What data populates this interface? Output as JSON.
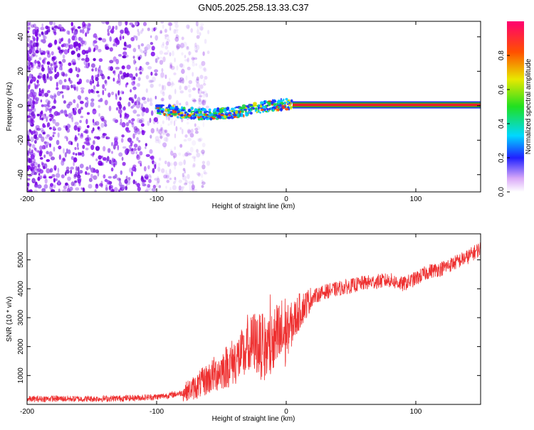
{
  "figure_title": "GN05.2025.258.13.33.C37",
  "colors": {
    "spectrogram_purple": "#7a00e6",
    "ridge_red": "#e8202a",
    "snr_line": "#ee3030",
    "ridge_green": "#20c020"
  },
  "chart_data": [
    {
      "type": "heatmap",
      "title": "GN05.2025.258.13.33.C37",
      "xlabel": "Height of straight line (km)",
      "ylabel": "Frequency (Hz)",
      "xlim": [
        -200,
        150
      ],
      "ylim": [
        -50,
        49
      ],
      "xticks": [
        -200,
        -100,
        0,
        100
      ],
      "yticks": [
        -40,
        -20,
        0,
        20,
        40
      ],
      "description_series": [
        {
          "name": "dominant frequency ridge",
          "x": [
            -100,
            -80,
            -60,
            -40,
            -20,
            0,
            20,
            150
          ],
          "y": [
            -2,
            -4,
            -5,
            -4,
            -1,
            1,
            0.5,
            0.5
          ]
        }
      ],
      "colorbar": {
        "label": "Normalized spectral amplitude",
        "range": [
          0,
          1
        ],
        "ticks": [
          "0.0",
          "0.2",
          "0.4",
          "0.6",
          "0.8"
        ]
      }
    },
    {
      "type": "line",
      "xlabel": "Height of straight line (km)",
      "ylabel": "SNR (10 * v/v)",
      "xlim": [
        -200,
        150
      ],
      "ylim": [
        0,
        5900
      ],
      "xticks": [
        -200,
        -100,
        0,
        100
      ],
      "yticks": [
        1000,
        2000,
        3000,
        4000,
        5000
      ],
      "series": [
        {
          "name": "SNR",
          "x": [
            -200,
            -180,
            -160,
            -140,
            -120,
            -100,
            -90,
            -80,
            -70,
            -60,
            -50,
            -40,
            -30,
            -25,
            -20,
            -15,
            -10,
            -5,
            0,
            5,
            10,
            20,
            30,
            40,
            50,
            60,
            70,
            80,
            90,
            100,
            110,
            120,
            130,
            140,
            150
          ],
          "y": [
            180,
            200,
            190,
            200,
            220,
            260,
            320,
            400,
            600,
            900,
            1200,
            1500,
            1800,
            2200,
            2000,
            1900,
            2100,
            2300,
            2500,
            2800,
            3200,
            3700,
            3900,
            4000,
            4100,
            4200,
            4250,
            4300,
            4150,
            4350,
            4600,
            4700,
            4900,
            5100,
            5400
          ]
        }
      ]
    }
  ]
}
